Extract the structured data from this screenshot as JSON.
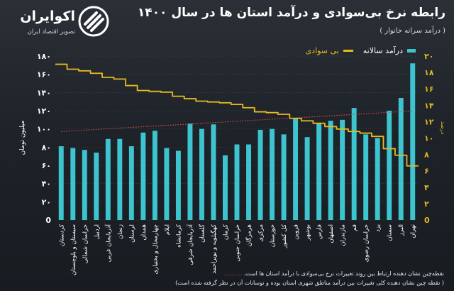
{
  "brand": {
    "name": "اکوایران",
    "tagline": "تصویر اقتصاد ایران"
  },
  "header": {
    "title": "رابطه نرخ بی‌سوادی و درآمد استان ها در سال ۱۴۰۰",
    "subtitle": "( درآمد سرانه خانوار )"
  },
  "legend": {
    "bar_label": "درآمد سالانه",
    "line_label": "بی سوادی"
  },
  "notes": {
    "marker": "..........",
    "note1": "نقطه‌چین نشان دهنده ارتباط بین روند تغییرات نرخ بی‌سوادی با درآمد استان ها است.",
    "note2": "( نقطه چین نشان دهنده کلی تغییرات بین درآمد مناطق شهری استان بوده و نوسانات آن در نظر گرفته شده است)"
  },
  "colors": {
    "bar": "#3dc4cf",
    "line": "#e8b820",
    "trend": "#d44a4a",
    "grid": "#6b7278"
  },
  "chart_data": {
    "type": "bar",
    "categories": [
      "کردستان",
      "سیستان و بلوچستان",
      "خراسان شمالی",
      "اردبیل",
      "آذربایجان غربی",
      "زنجان",
      "لرستان",
      "همدان",
      "چهارمحال و بختیاری",
      "ایلام",
      "کرمانشاه",
      "آذربایجان شرقی",
      "گلستان",
      "کهگیلویه و بویراحمد",
      "کرمان",
      "خراسان جنوبی",
      "هرمزگان",
      "مرکزی",
      "خوزستان",
      "کل کشور",
      "قزوین",
      "بوشهر",
      "فارس",
      "اصفهان",
      "مازندران",
      "قم",
      "خراسان رضوی",
      "یزد",
      "سمنان",
      "البرز",
      "تهران"
    ],
    "series": [
      {
        "name": "درآمد سالانه",
        "axis": "left",
        "values": [
          81,
          79,
          77,
          74,
          89,
          89,
          81,
          96,
          98,
          79,
          76,
          106,
          100,
          105,
          71,
          83,
          83,
          99,
          100,
          94,
          112,
          91,
          106,
          109,
          110,
          123,
          94,
          90,
          120,
          134,
          172
        ]
      },
      {
        "name": "بی سوادی",
        "axis": "right",
        "values": [
          19.0,
          18.4,
          18.2,
          17.9,
          17.4,
          17.2,
          16.4,
          15.8,
          15.7,
          15.6,
          15.1,
          14.8,
          14.5,
          14.4,
          14.3,
          14.1,
          13.7,
          13.2,
          13.1,
          12.9,
          12.4,
          12.1,
          11.8,
          11.4,
          11.1,
          10.8,
          10.6,
          10.2,
          8.7,
          7.9,
          6.6
        ]
      }
    ],
    "left_axis": {
      "label": "میلیون تومان",
      "ylim": [
        0,
        180
      ],
      "ticks": [
        "0",
        "۲۰",
        "۴۰",
        "۶۰",
        "۸۰",
        "۱۰۰",
        "۱۲۰",
        "۱۴۰",
        "۱۶۰",
        "۱۸۰"
      ]
    },
    "right_axis": {
      "label": "درصد",
      "ylim": [
        0,
        20
      ],
      "ticks": [
        "0",
        "۲",
        "۴",
        "۶",
        "۸",
        "۱۰",
        "۱۲",
        "۱۴",
        "۱۶",
        "۱۸",
        "۲۰"
      ]
    },
    "trend": {
      "name": "روند",
      "start": 10.8,
      "end": 13.3
    }
  }
}
